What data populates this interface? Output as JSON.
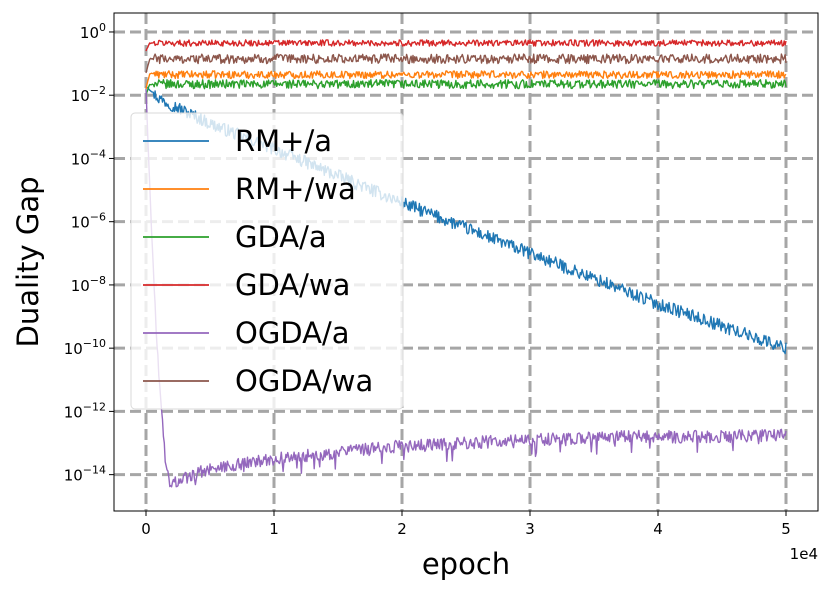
{
  "chart_data": {
    "type": "line",
    "title": "",
    "xlabel": "epoch",
    "ylabel": "Duality Gap",
    "xscale": "linear",
    "yscale": "log",
    "xlim": [
      -2500,
      52500
    ],
    "ylim_log10": [
      -15.15,
      0.6
    ],
    "x_offset_text": "1e4",
    "x_ticks": [
      {
        "value": 0,
        "label": "0"
      },
      {
        "value": 10000,
        "label": "1"
      },
      {
        "value": 20000,
        "label": "2"
      },
      {
        "value": 30000,
        "label": "3"
      },
      {
        "value": 40000,
        "label": "4"
      },
      {
        "value": 50000,
        "label": "5"
      }
    ],
    "y_ticks": [
      {
        "exp": 0,
        "base": "10",
        "sup": "0"
      },
      {
        "exp": -2,
        "base": "10",
        "sup": "−2"
      },
      {
        "exp": -4,
        "base": "10",
        "sup": "−4"
      },
      {
        "exp": -6,
        "base": "10",
        "sup": "−6"
      },
      {
        "exp": -8,
        "base": "10",
        "sup": "−8"
      },
      {
        "exp": -10,
        "base": "10",
        "sup": "−10"
      },
      {
        "exp": -12,
        "base": "10",
        "sup": "−12"
      },
      {
        "exp": -14,
        "base": "10",
        "sup": "−14"
      }
    ],
    "grid": true,
    "legend_position": "center-left",
    "series": [
      {
        "name": "RM+/a",
        "color": "#1f77b4",
        "x": [
          0,
          1000,
          5000,
          10000,
          20000,
          30000,
          40000,
          50000
        ],
        "log10_y": [
          -1.7,
          -2.1,
          -2.9,
          -3.7,
          -5.4,
          -7.0,
          -8.6,
          -10.0
        ],
        "noise": 0.2
      },
      {
        "name": "RM+/wa",
        "color": "#ff7f0e",
        "x": [
          0,
          300,
          1000,
          50000
        ],
        "log10_y": [
          -1.8,
          -1.3,
          -1.35,
          -1.35
        ],
        "noise": 0.12
      },
      {
        "name": "GDA/a",
        "color": "#2ca02c",
        "x": [
          0,
          300,
          1000,
          50000
        ],
        "log10_y": [
          -2.0,
          -1.65,
          -1.65,
          -1.65
        ],
        "noise": 0.14
      },
      {
        "name": "GDA/wa",
        "color": "#d62728",
        "x": [
          0,
          300,
          1000,
          50000
        ],
        "log10_y": [
          -0.6,
          -0.35,
          -0.35,
          -0.35
        ],
        "noise": 0.1
      },
      {
        "name": "OGDA/a",
        "color": "#9467bd",
        "x": [
          0,
          400,
          1000,
          1600,
          1900,
          2500,
          5000,
          10000,
          20000,
          30000,
          38000,
          43000,
          50000
        ],
        "log10_y": [
          -1.8,
          -6.0,
          -11.0,
          -13.9,
          -14.3,
          -14.2,
          -13.8,
          -13.5,
          -13.1,
          -12.9,
          -12.8,
          -12.8,
          -12.75
        ],
        "noise": 0.2
      },
      {
        "name": "OGDA/wa",
        "color": "#8c564b",
        "x": [
          0,
          300,
          1000,
          50000
        ],
        "log10_y": [
          -1.3,
          -0.85,
          -0.85,
          -0.85
        ],
        "noise": 0.15
      }
    ]
  }
}
